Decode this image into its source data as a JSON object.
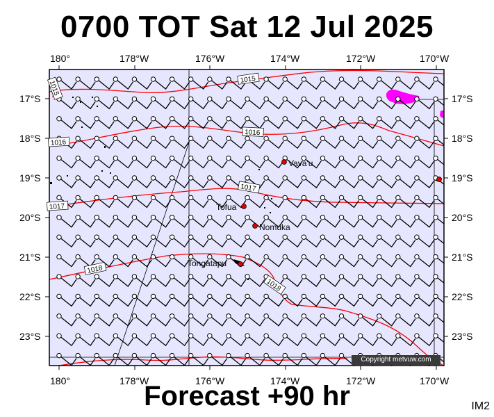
{
  "title": "0700 TOT Sat 12 Jul 2025",
  "subtitle": "Forecast +90 hr",
  "image_code": "IM2",
  "copyright": "Copyright metvuw.com",
  "colors": {
    "map_background": "#e6e6ff",
    "isobar": "#ff0000",
    "precip": "#ff00ff",
    "land": "#000000"
  },
  "icons": [
    "wind-barb-icon",
    "location-dot-icon"
  ],
  "longitude_labels": [
    "180°",
    "178°W",
    "176°W",
    "174°W",
    "172°W",
    "170°W"
  ],
  "latitude_labels": [
    "17°S",
    "18°S",
    "19°S",
    "20°S",
    "21°S",
    "22°S",
    "23°S"
  ],
  "isobar_labels": [
    "1015",
    "1015",
    "1016",
    "1016",
    "1017",
    "1017",
    "1018",
    "1018"
  ],
  "places": [
    {
      "name": "Vava'u",
      "lon": -174.0,
      "lat": -18.6
    },
    {
      "name": "Tofua",
      "lon": -175.1,
      "lat": -19.7
    },
    {
      "name": "Nomuka",
      "lon": -174.8,
      "lat": -20.2
    },
    {
      "name": "Tongatapu",
      "lon": -175.2,
      "lat": -21.15
    }
  ]
}
